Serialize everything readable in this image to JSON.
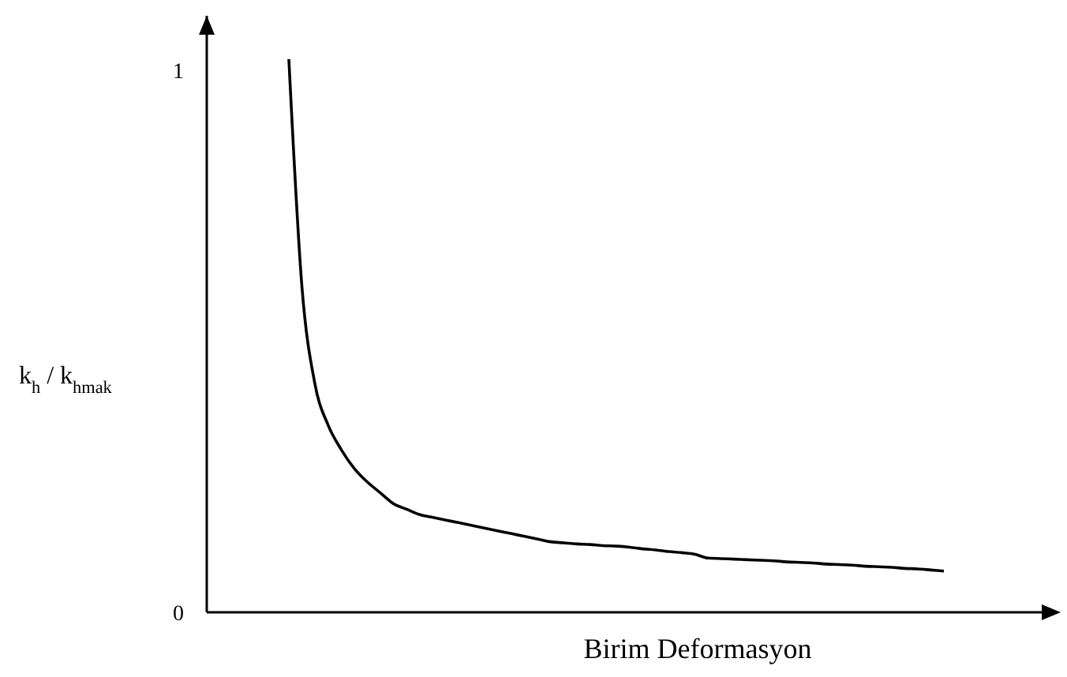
{
  "chart_data": {
    "type": "line",
    "xlabel": "Birim Deformasyon",
    "ylabel": "k$_{h}$ / k$_{hmak}$",
    "categories": [
      null,
      null,
      null,
      null,
      null,
      null,
      null,
      null,
      null,
      null,
      null,
      null,
      null,
      null,
      null,
      null,
      null,
      null,
      null,
      null,
      null,
      null,
      null,
      null,
      null,
      null,
      null,
      null,
      null,
      null,
      null,
      null,
      null,
      null,
      null,
      null,
      null,
      null,
      null,
      null,
      null,
      null,
      null,
      null,
      null,
      null,
      null,
      null,
      null,
      null,
      null
    ],
    "values": [
      1.02,
      0.6,
      0.42,
      0.345,
      0.3,
      0.265,
      0.24,
      0.22,
      0.2,
      0.19,
      0.18,
      0.175,
      0.17,
      0.165,
      0.16,
      0.155,
      0.15,
      0.145,
      0.14,
      0.135,
      0.13,
      0.128,
      0.126,
      0.125,
      0.123,
      0.122,
      0.12,
      0.117,
      0.115,
      0.112,
      0.11,
      0.107,
      0.1,
      0.099,
      0.098,
      0.097,
      0.096,
      0.095,
      0.093,
      0.092,
      0.091,
      0.089,
      0.088,
      0.087,
      0.085,
      0.084,
      0.083,
      0.081,
      0.08,
      0.078,
      0.076
    ],
    "color": "#000000",
    "ylim": [
      0,
      1.1
    ],
    "yticks": [
      0,
      1
    ]
  }
}
